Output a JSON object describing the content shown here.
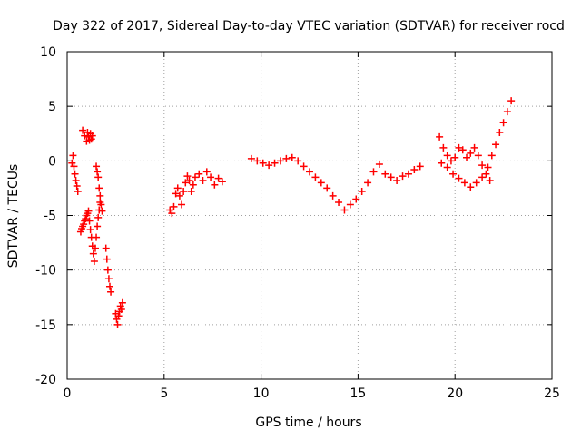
{
  "chart_data": {
    "type": "scatter",
    "title": "Day 322 of 2017, Sidereal Day-to-day VTEC variation (SDTVAR) for receiver rocd",
    "xlabel": "GPS time / hours",
    "ylabel": "SDTVAR / TECUs",
    "xlim": [
      0,
      25
    ],
    "ylim": [
      -20,
      10
    ],
    "xticks": [
      0,
      5,
      10,
      15,
      20,
      25
    ],
    "yticks": [
      -20,
      -15,
      -10,
      -5,
      0,
      5,
      10
    ],
    "xtick_labels": [
      "0",
      "5",
      "10",
      "15",
      "20",
      "25"
    ],
    "ytick_labels": [
      "-20",
      "-15",
      "-10",
      "-5",
      "0",
      "5",
      "10"
    ],
    "grid": true,
    "marker": "+",
    "series": [
      {
        "name": "SDTVAR",
        "color": "#ff0000",
        "x": [
          0.25,
          0.3,
          0.35,
          0.4,
          0.45,
          0.5,
          0.55,
          0.7,
          0.75,
          0.8,
          0.85,
          0.9,
          0.95,
          1.0,
          1.05,
          1.1,
          1.15,
          1.2,
          1.25,
          1.3,
          1.35,
          1.4,
          1.45,
          1.5,
          1.55,
          1.6,
          1.65,
          1.7,
          0.8,
          0.9,
          1.0,
          1.05,
          1.1,
          1.15,
          1.2,
          1.25,
          1.3,
          1.5,
          1.55,
          1.6,
          1.65,
          1.7,
          1.75,
          1.8,
          2.0,
          2.05,
          2.1,
          2.15,
          2.2,
          2.25,
          2.5,
          2.55,
          2.6,
          2.65,
          2.7,
          2.75,
          2.8,
          2.85,
          5.3,
          5.4,
          5.5,
          5.6,
          5.7,
          5.8,
          5.9,
          6.0,
          6.1,
          6.2,
          6.3,
          6.4,
          6.5,
          6.6,
          6.8,
          7.0,
          7.2,
          7.4,
          7.6,
          7.8,
          8.0,
          9.5,
          9.8,
          10.1,
          10.4,
          10.7,
          11.0,
          11.3,
          11.6,
          11.9,
          12.2,
          12.5,
          12.8,
          13.1,
          13.4,
          13.7,
          14.0,
          14.3,
          14.6,
          14.9,
          15.2,
          15.5,
          15.8,
          16.1,
          16.4,
          16.7,
          17.0,
          17.3,
          17.6,
          17.9,
          18.2,
          19.2,
          19.4,
          19.6,
          19.8,
          20.0,
          20.2,
          20.4,
          20.6,
          20.8,
          21.0,
          21.2,
          21.4,
          21.6,
          21.8,
          19.3,
          19.6,
          19.9,
          20.2,
          20.5,
          20.8,
          21.1,
          21.4,
          21.7,
          21.9,
          22.1,
          22.3,
          22.5,
          22.7,
          22.9
        ],
        "y": [
          -0.2,
          0.5,
          -0.5,
          -1.2,
          -1.8,
          -2.3,
          -2.8,
          -6.5,
          -6.2,
          -6.0,
          -5.8,
          -5.5,
          -5.3,
          -5.0,
          -4.8,
          -4.6,
          -5.5,
          -6.3,
          -7.0,
          -7.8,
          -8.5,
          -9.2,
          -8.0,
          -7.0,
          -6.0,
          -5.2,
          -4.5,
          -3.8,
          2.8,
          2.3,
          1.8,
          2.6,
          2.2,
          1.9,
          2.5,
          2.0,
          2.3,
          -0.5,
          -1.0,
          -1.5,
          -2.5,
          -3.2,
          -4.0,
          -4.6,
          -8.0,
          -9.0,
          -10.0,
          -10.8,
          -11.5,
          -12.0,
          -14.0,
          -14.5,
          -15.0,
          -14.2,
          -13.8,
          -13.3,
          -13.6,
          -13.0,
          -4.5,
          -4.8,
          -4.2,
          -3.0,
          -2.5,
          -3.2,
          -4.0,
          -2.8,
          -2.0,
          -1.4,
          -1.8,
          -2.8,
          -2.2,
          -1.5,
          -1.2,
          -1.8,
          -1.0,
          -1.5,
          -2.2,
          -1.6,
          -1.9,
          0.2,
          0.0,
          -0.2,
          -0.4,
          -0.2,
          0.0,
          0.2,
          0.3,
          0.0,
          -0.5,
          -1.0,
          -1.5,
          -2.0,
          -2.5,
          -3.2,
          -3.8,
          -4.5,
          -4.0,
          -3.5,
          -2.8,
          -2.0,
          -1.0,
          -0.3,
          -1.2,
          -1.5,
          -1.8,
          -1.4,
          -1.2,
          -0.8,
          -0.5,
          2.2,
          1.2,
          0.5,
          0.0,
          0.3,
          1.2,
          1.0,
          0.3,
          0.7,
          1.2,
          0.5,
          -0.4,
          -1.2,
          -1.8,
          -0.2,
          -0.6,
          -1.2,
          -1.6,
          -2.0,
          -2.4,
          -2.0,
          -1.5,
          -0.6,
          0.5,
          1.5,
          2.6,
          3.5,
          4.5,
          5.5
        ]
      }
    ]
  }
}
